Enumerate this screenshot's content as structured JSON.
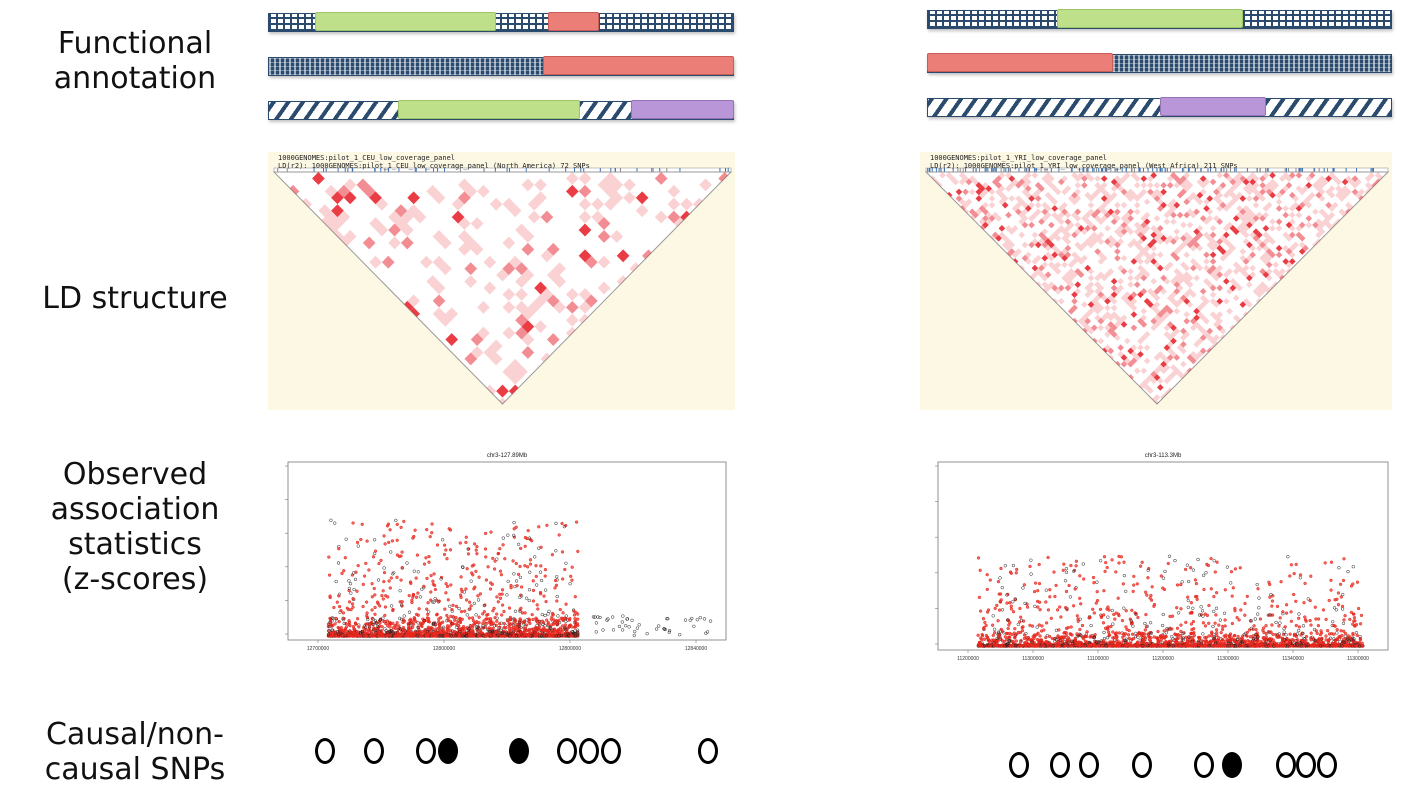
{
  "labels": {
    "functional": [
      "Functional",
      "annotation"
    ],
    "ld": [
      "LD structure"
    ],
    "assoc": [
      "Observed",
      "association",
      "statistics",
      "(z-scores)"
    ],
    "snps": [
      "Causal/non-",
      "causal SNPs"
    ]
  },
  "colors": {
    "track_edge": "#2a4a6e",
    "green": "#bfe08a",
    "red": "#ec7e78",
    "purple": "#b896d8",
    "ld_background": "#fdf8e4",
    "ld_cell": "#e8323a",
    "snp_point_red": "#e8281e",
    "snp_point_black": "#222222"
  },
  "panels": [
    {
      "id": "left",
      "tracks": [
        {
          "pattern": "grid",
          "features": [
            {
              "color": "green",
              "start": 0.1,
              "end": 0.49
            },
            {
              "color": "red",
              "start": 0.6,
              "end": 0.71
            }
          ]
        },
        {
          "pattern": "dots",
          "features": [
            {
              "color": "red",
              "start": 0.59,
              "end": 1.0
            }
          ]
        },
        {
          "pattern": "diag",
          "features": [
            {
              "color": "green",
              "start": 0.28,
              "end": 0.67
            },
            {
              "color": "purple",
              "start": 0.78,
              "end": 1.0
            }
          ]
        }
      ],
      "ld": {
        "caption1": "1000GENOMES:pilot_1_CEU_low_coverage_panel",
        "caption2": "LD(r2): 1000GENOMES:pilot_1_CEU_low_coverage_panel (North America)  72 SNPs",
        "density": "sparse"
      },
      "plot": {
        "title": "chr3-127.89Mb",
        "x_ticks": [
          "12700000",
          "12800000",
          "12800000",
          "12840000"
        ]
      },
      "snps": [
        {
          "pos": 0.08,
          "causal": false
        },
        {
          "pos": 0.19,
          "causal": false
        },
        {
          "pos": 0.31,
          "causal": false
        },
        {
          "pos": 0.36,
          "causal": true
        },
        {
          "pos": 0.52,
          "causal": true
        },
        {
          "pos": 0.63,
          "causal": false
        },
        {
          "pos": 0.68,
          "causal": false
        },
        {
          "pos": 0.73,
          "causal": false
        },
        {
          "pos": 0.95,
          "causal": false
        }
      ]
    },
    {
      "id": "right",
      "tracks": [
        {
          "pattern": "grid",
          "features": [
            {
              "color": "green",
              "start": 0.28,
              "end": 0.68
            }
          ]
        },
        {
          "pattern": "dots",
          "features": [
            {
              "color": "red",
              "start": 0.0,
              "end": 0.4
            }
          ]
        },
        {
          "pattern": "diag",
          "features": [
            {
              "color": "purple",
              "start": 0.5,
              "end": 0.73
            }
          ]
        }
      ],
      "ld": {
        "caption1": "1000GENOMES:pilot_1_YRI_low_coverage_panel",
        "caption2": "LD(r2): 1000GENOMES:pilot_1_YRI_low_coverage_panel (West Africa)  211 SNPs",
        "density": "dense"
      },
      "plot": {
        "title": "chr3-113.3Mb",
        "x_ticks": [
          "11200000",
          "11300000",
          "11100000",
          "11200000",
          "11300000",
          "11340000",
          "11300000"
        ]
      },
      "snps": [
        {
          "pos": 0.12,
          "causal": false
        },
        {
          "pos": 0.22,
          "causal": false
        },
        {
          "pos": 0.29,
          "causal": false
        },
        {
          "pos": 0.42,
          "causal": false
        },
        {
          "pos": 0.57,
          "causal": false
        },
        {
          "pos": 0.64,
          "causal": true
        },
        {
          "pos": 0.77,
          "causal": false
        },
        {
          "pos": 0.82,
          "causal": false
        },
        {
          "pos": 0.87,
          "causal": false
        }
      ]
    }
  ]
}
